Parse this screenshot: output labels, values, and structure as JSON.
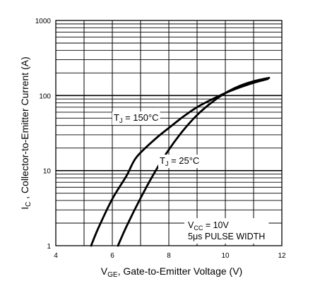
{
  "chart_data": {
    "type": "line",
    "xlabel": {
      "main": "V",
      "sub": "GE",
      "rest": ", Gate-to-Emitter Voltage (V)"
    },
    "ylabel": {
      "main": "I",
      "sub": "C",
      "rest": " , Collector-to-Emitter Current (A)"
    },
    "xlim": [
      4,
      12
    ],
    "ylim": [
      1,
      1000
    ],
    "yscale": "log",
    "xticks": [
      "4",
      "6",
      "8",
      "10",
      "12"
    ],
    "yticks": [
      "1",
      "10",
      "100",
      "1000"
    ],
    "grid": true,
    "series": [
      {
        "name": {
          "main": "T",
          "sub": "J",
          "rest": " = 150°C"
        },
        "points": [
          [
            5.25,
            1
          ],
          [
            5.5,
            1.7
          ],
          [
            6.0,
            4.2
          ],
          [
            6.5,
            8.5
          ],
          [
            6.85,
            15
          ],
          [
            7.5,
            26
          ],
          [
            8.0,
            37
          ],
          [
            8.5,
            52
          ],
          [
            9.0,
            70
          ],
          [
            9.5,
            88
          ],
          [
            10.0,
            108
          ],
          [
            10.5,
            128
          ],
          [
            11.0,
            148
          ],
          [
            11.5,
            166
          ]
        ]
      },
      {
        "name": {
          "main": "T",
          "sub": "J",
          "rest": " = 25°C"
        },
        "points": [
          [
            6.2,
            1
          ],
          [
            6.5,
            1.8
          ],
          [
            7.0,
            4.3
          ],
          [
            7.5,
            9.5
          ],
          [
            8.0,
            19
          ],
          [
            8.5,
            34
          ],
          [
            9.0,
            55
          ],
          [
            9.5,
            80
          ],
          [
            10.0,
            108
          ],
          [
            10.5,
            134
          ],
          [
            11.0,
            155
          ],
          [
            11.55,
            172
          ]
        ]
      }
    ],
    "conditions": [
      {
        "main": "V",
        "sub": "CC",
        "rest": "  = 10V"
      },
      {
        "text": "5μs PULSE WIDTH"
      }
    ]
  }
}
